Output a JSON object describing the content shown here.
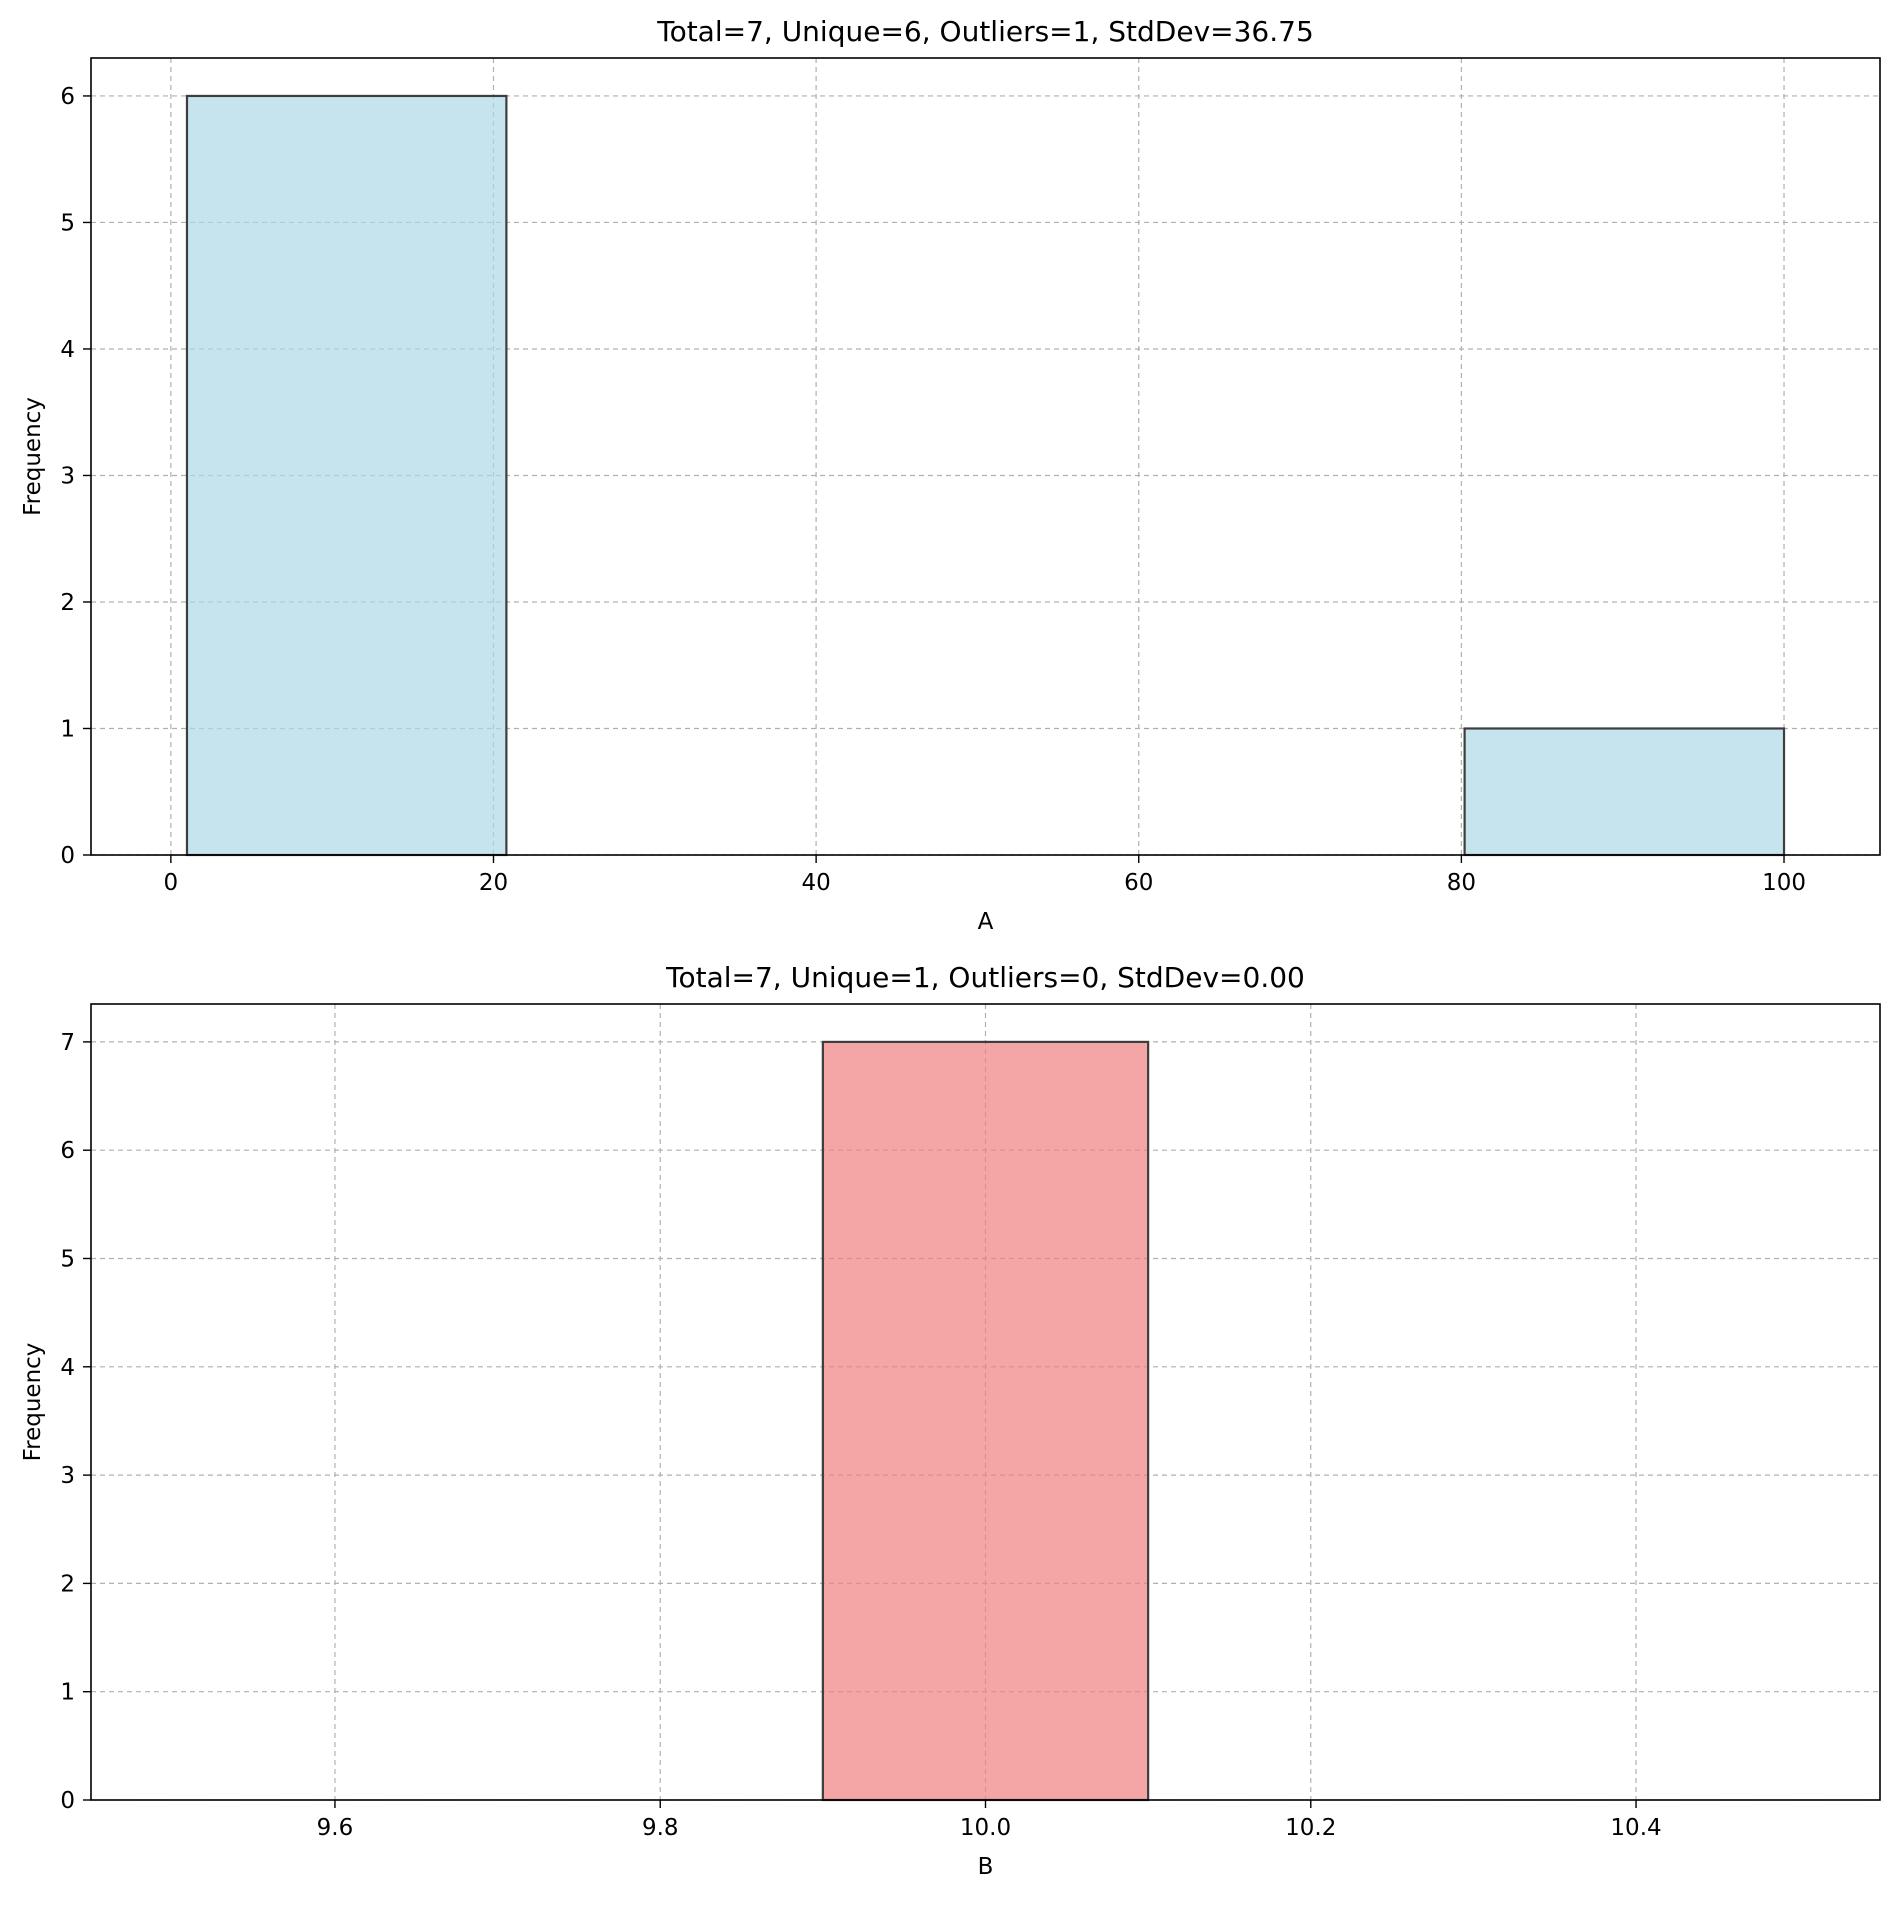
{
  "chart_data": [
    {
      "type": "bar",
      "title": "Total=7, Unique=6, Outliers=1, StdDev=36.75",
      "xlabel": "A",
      "ylabel": "Frequency",
      "xlim": [
        -4.95,
        105.95
      ],
      "ylim": [
        0,
        6.3
      ],
      "xticks": [
        0,
        20,
        40,
        60,
        80,
        100
      ],
      "xtick_labels": [
        "0",
        "20",
        "40",
        "60",
        "80",
        "100"
      ],
      "yticks": [
        0,
        1,
        2,
        3,
        4,
        5,
        6
      ],
      "ytick_labels": [
        "0",
        "1",
        "2",
        "3",
        "4",
        "5",
        "6"
      ],
      "grid": true,
      "bar_color": "#add8e6",
      "bins": [
        {
          "x0": 1,
          "x1": 20.8,
          "count": 6
        },
        {
          "x0": 80.2,
          "x1": 100,
          "count": 1
        }
      ]
    },
    {
      "type": "bar",
      "title": "Total=7, Unique=1, Outliers=0, StdDev=0.00",
      "xlabel": "B",
      "ylabel": "Frequency",
      "xlim": [
        9.45,
        10.55
      ],
      "ylim": [
        0,
        7.35
      ],
      "xticks": [
        9.6,
        9.8,
        10.0,
        10.2,
        10.4
      ],
      "xtick_labels": [
        "9.6",
        "9.8",
        "10.0",
        "10.2",
        "10.4"
      ],
      "yticks": [
        0,
        1,
        2,
        3,
        4,
        5,
        6,
        7
      ],
      "ytick_labels": [
        "0",
        "1",
        "2",
        "3",
        "4",
        "5",
        "6",
        "7"
      ],
      "grid": true,
      "bar_color": "#f08080",
      "bins": [
        {
          "x0": 9.9,
          "x1": 10.1,
          "count": 7
        }
      ]
    }
  ]
}
